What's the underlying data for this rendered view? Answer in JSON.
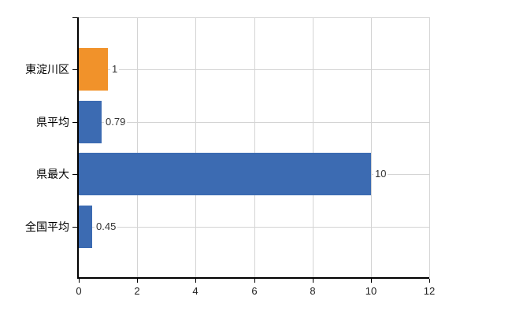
{
  "chart_data": {
    "type": "bar",
    "orientation": "horizontal",
    "title": "",
    "xlabel": "",
    "ylabel": "",
    "categories": [
      "東淀川区",
      "県平均",
      "県最大",
      "全国平均"
    ],
    "values": [
      1,
      0.79,
      10,
      0.45
    ],
    "value_labels": [
      "1",
      "0.79",
      "10",
      "0.45"
    ],
    "bar_colors": [
      "#f1922a",
      "#3c6bb2",
      "#3c6bb2",
      "#3c6bb2"
    ],
    "highlight_color": "#f1922a",
    "default_bar_color": "#3c6bb2",
    "x_ticks": [
      "0",
      "2",
      "4",
      "6",
      "8",
      "10",
      "12"
    ],
    "xlim": [
      0,
      12
    ],
    "grid": true,
    "legend": false,
    "gridline_color": "#d4d4d4",
    "axis_color": "#000000",
    "value_text_color": "#333333",
    "tick_text_color": "#222222",
    "background_color": "#ffffff"
  }
}
